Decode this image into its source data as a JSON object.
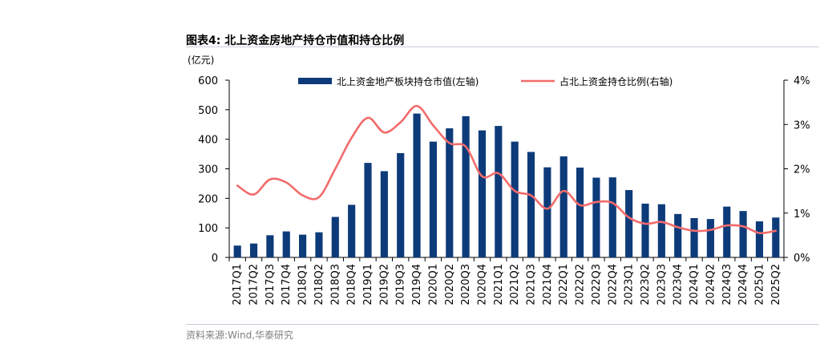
{
  "figure": {
    "title": "图表4:  北上资金房地产持仓市值和持仓比例",
    "source": "资料来源:Wind,华泰研究"
  },
  "chart_data": {
    "type": "bar+line",
    "y_unit_label": "(亿元)",
    "categories": [
      "2017Q1",
      "2017Q2",
      "2017Q3",
      "2017Q4",
      "2018Q1",
      "2018Q2",
      "2018Q3",
      "2018Q4",
      "2019Q1",
      "2019Q2",
      "2019Q3",
      "2019Q4",
      "2020Q1",
      "2020Q2",
      "2020Q3",
      "2020Q4",
      "2021Q1",
      "2021Q2",
      "2021Q3",
      "2021Q4",
      "2022Q1",
      "2022Q2",
      "2022Q3",
      "2022Q4",
      "2023Q1",
      "2023Q2",
      "2023Q3",
      "2023Q4",
      "2024Q1",
      "2024Q2",
      "2024Q3",
      "2024Q4",
      "2025Q1",
      "2025Q2"
    ],
    "series": [
      {
        "name": "北上资金地产板块持仓市值(左轴)",
        "type": "bar",
        "axis": "left",
        "color": "#0d3b7a",
        "values": [
          40,
          47,
          75,
          88,
          77,
          85,
          137,
          178,
          320,
          292,
          353,
          487,
          392,
          437,
          478,
          430,
          445,
          392,
          357,
          305,
          342,
          304,
          270,
          271,
          228,
          182,
          180,
          147,
          133,
          130,
          172,
          157,
          122,
          135
        ]
      },
      {
        "name": "占北上资金持仓比例(右轴)",
        "type": "line",
        "axis": "right",
        "color": "#f26b6b",
        "values": [
          1.62,
          1.42,
          1.76,
          1.69,
          1.4,
          1.36,
          2.0,
          2.7,
          3.15,
          2.82,
          3.05,
          3.42,
          2.98,
          2.58,
          2.5,
          1.83,
          1.9,
          1.5,
          1.4,
          1.1,
          1.5,
          1.18,
          1.25,
          1.23,
          0.9,
          0.76,
          0.8,
          0.68,
          0.6,
          0.62,
          0.72,
          0.7,
          0.55,
          0.6
        ]
      }
    ],
    "y_left": {
      "min": 0,
      "max": 600,
      "ticks": [
        0,
        100,
        200,
        300,
        400,
        500,
        600
      ]
    },
    "y_right": {
      "min": 0,
      "max": 4,
      "ticks": [
        0,
        1,
        2,
        3,
        4
      ],
      "tick_labels": [
        "0%",
        "1%",
        "2%",
        "3%",
        "4%"
      ]
    },
    "legend": {
      "placement": "top-center"
    },
    "grid": false
  }
}
